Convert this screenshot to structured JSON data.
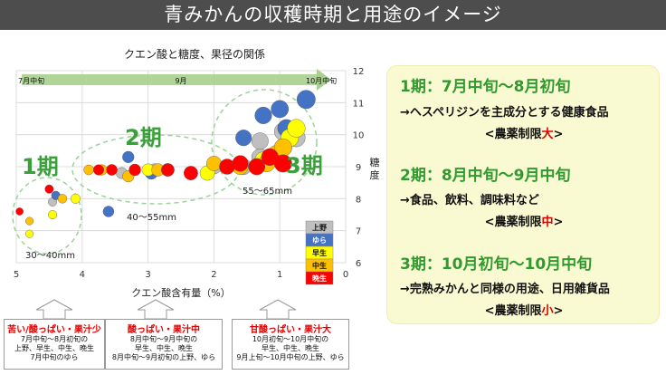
{
  "header": {
    "title": "青みかんの収穫時期と用途のイメージ"
  },
  "chart_data": {
    "type": "scatter",
    "title": "クエン酸と糖度、果径の関係",
    "xlabel": "クエン酸含有量（%）",
    "ylabel": "糖度",
    "xlim": [
      5,
      0
    ],
    "ylim": [
      6,
      12
    ],
    "x_reversed": true,
    "x_ticks": [
      "5",
      "4",
      "3",
      "2",
      "1",
      "0"
    ],
    "y_ticks": [
      "6",
      "7",
      "8",
      "9",
      "10",
      "11",
      "12"
    ],
    "grid": true,
    "legend_position": "right",
    "series": [
      {
        "name": "上野",
        "color": "#bfbfbf",
        "points": [
          [
            4.45,
            7.9
          ],
          [
            3.4,
            8.8
          ],
          [
            2.9,
            8.9
          ],
          [
            2.0,
            9.0
          ],
          [
            1.55,
            9.0
          ],
          [
            1.3,
            9.3
          ],
          [
            1.3,
            9.8
          ],
          [
            0.95,
            10.1
          ],
          [
            0.8,
            10.0
          ],
          [
            0.75,
            9.9
          ]
        ]
      },
      {
        "name": "ゆら",
        "color": "#4472c4",
        "points": [
          [
            4.4,
            8.1
          ],
          [
            3.6,
            7.6
          ],
          [
            3.3,
            9.3
          ],
          [
            2.95,
            8.8
          ],
          [
            1.55,
            9.9
          ],
          [
            1.25,
            10.6
          ],
          [
            1.0,
            10.8
          ],
          [
            0.9,
            10.2
          ],
          [
            0.6,
            11.1
          ]
        ]
      },
      {
        "name": "早生",
        "color": "#ffff00",
        "points": [
          [
            4.8,
            6.9
          ],
          [
            4.45,
            7.5
          ],
          [
            4.1,
            8.0
          ],
          [
            3.55,
            8.9
          ],
          [
            3.0,
            8.9
          ],
          [
            2.1,
            8.8
          ],
          [
            1.25,
            9.2
          ],
          [
            0.95,
            9.6
          ],
          [
            0.85,
            9.9
          ],
          [
            0.75,
            10.2
          ]
        ]
      },
      {
        "name": "中生",
        "color": "#ffc000",
        "points": [
          [
            4.8,
            7.3
          ],
          [
            4.3,
            8.0
          ],
          [
            3.9,
            8.9
          ],
          [
            3.7,
            8.9
          ],
          [
            3.3,
            8.7
          ],
          [
            2.85,
            8.9
          ],
          [
            2.0,
            9.1
          ],
          [
            1.6,
            9.0
          ],
          [
            1.2,
            9.1
          ],
          [
            1.05,
            9.4
          ],
          [
            0.95,
            9.6
          ]
        ]
      },
      {
        "name": "晩生",
        "color": "#ff0000",
        "points": [
          [
            4.95,
            7.6
          ],
          [
            4.5,
            8.3
          ],
          [
            3.75,
            8.9
          ],
          [
            3.55,
            8.9
          ],
          [
            3.2,
            8.9
          ],
          [
            2.7,
            8.9
          ],
          [
            2.35,
            8.8
          ],
          [
            1.8,
            9.0
          ],
          [
            1.6,
            9.1
          ],
          [
            1.35,
            9.0
          ],
          [
            1.15,
            9.3
          ],
          [
            0.95,
            9.1
          ]
        ]
      }
    ],
    "annotations": {
      "timeline_left": "7月中旬",
      "timeline_mid": "9月",
      "timeline_right": "10月中旬",
      "period1": "1期",
      "period2": "2期",
      "period3": "3期",
      "size1": "30～40mm",
      "size2": "40～55mm",
      "size3": "55～65mm"
    }
  },
  "info": {
    "p1_head": "1期：7月中旬～8月初旬",
    "p1_desc": "→ヘスペリジンを主成分とする健康食品",
    "p1_pre": "<農薬制限",
    "p1_lvl": "大",
    "p1_post": ">",
    "p2_head": "2期：8月中旬～9月中旬",
    "p2_desc": "→食品、飲料、調味料など",
    "p2_pre": "<農薬制限",
    "p2_lvl": "中",
    "p2_post": ">",
    "p3_head": "3期：10月初旬～10月中旬",
    "p3_desc": "→完熟みかんと同様の用途、日用雑貨品",
    "p3_pre": "<農薬制限",
    "p3_lvl": "小",
    "p3_post": ">"
  },
  "notes": [
    {
      "head": "苦い/酸っぱい・果汁少",
      "l1": "7月中旬～8月初旬の",
      "l2": "上野、早生、中生、晩生",
      "l3": "7月中旬のゆら"
    },
    {
      "head": "酸っぱい・果汁中",
      "l1": "8月中旬～9月中旬の",
      "l2": "早生、中生、晩生",
      "l3": "8月中旬～9月初旬の上野、ゆら"
    },
    {
      "head": "甘酸っぱい・果汁大",
      "l1": "10月初旬～10月中旬の",
      "l2": "早生、中生、晩生",
      "l3": "9月上旬～10月中旬の上野、ゆら"
    }
  ]
}
